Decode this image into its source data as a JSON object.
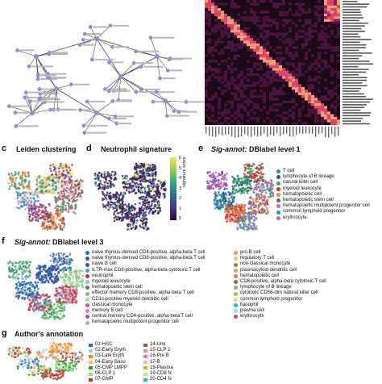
{
  "panels": {
    "c": {
      "letter": "c",
      "title": "Leiden clustering"
    },
    "d": {
      "letter": "d",
      "title": "Neutrophil signature",
      "colorbar_label": "signature score",
      "colorbar_ticks": [
        "6",
        "5",
        "4",
        "3",
        "2",
        "1",
        "0"
      ]
    },
    "e": {
      "letter": "e",
      "title_italic": "Sig-annot:",
      "title_rest": " DBlabel level 1",
      "legend": [
        {
          "label": "T cell",
          "color": "#2f8fb3"
        },
        {
          "label": "lymphocyte of B lineage",
          "color": "#1f5f78"
        },
        {
          "label": "natural killer cell",
          "color": "#43a35b"
        },
        {
          "label": "myeloid leukocyte",
          "color": "#d62c3c"
        },
        {
          "label": "hematopoietic cell",
          "color": "#e88a2e"
        },
        {
          "label": "hematopoietic stem cell",
          "color": "#7a4fa3"
        },
        {
          "label": "hematopoietic multipotent progenitor cell",
          "color": "#b86bc2"
        },
        {
          "label": "common lymphoid progenitor",
          "color": "#2b9d8f"
        },
        {
          "label": "erythrocyte",
          "color": "#e05a8a"
        }
      ]
    },
    "f": {
      "letter": "f",
      "title_italic": "Sig-annot:",
      "title_rest": " DBlabel level 3",
      "legend_left": [
        {
          "label": "naive thymus-derived CD4-positive, alpha-beta T cell",
          "color": "#1f77b4"
        },
        {
          "label": "naive thymus-derived CD8-positive, alpha-beta T cell",
          "color": "#2a5fa8"
        },
        {
          "label": "naive B cell",
          "color": "#3b4fa0"
        },
        {
          "label": "IL7R-max CD8-positive, alpha-beta cytotoxic T cell",
          "color": "#5a8fd0"
        },
        {
          "label": "neutrophil",
          "color": "#d8262c"
        },
        {
          "label": "myeloid leukocyte",
          "color": "#9bb7e0"
        },
        {
          "label": "hematopoietic stem cell",
          "color": "#2c9c4a"
        },
        {
          "label": "effector memory CD8-positive, alpha-beta T cell",
          "color": "#7cc47a"
        },
        {
          "label": "CD1c-positive myeloid dendritic cell",
          "color": "#a8d5a2"
        },
        {
          "label": "classical monocyte",
          "color": "#e0559a"
        },
        {
          "label": "memory B cell",
          "color": "#f07ab4"
        },
        {
          "label": "central memory CD4-positive, alpha-beta T cell",
          "color": "#8e5bb0"
        },
        {
          "label": "hematopoietic multipotent progenitor cell",
          "color": "#c19bd6"
        }
      ],
      "legend_right": [
        {
          "label": "pro-B cell",
          "color": "#e6a23c"
        },
        {
          "label": "regulatory T cell",
          "color": "#f2c66d"
        },
        {
          "label": "non-classical monocyte",
          "color": "#9b7a3c"
        },
        {
          "label": "plasmacytoid dendritic cell",
          "color": "#c8a878"
        },
        {
          "label": "hematopoietic cell",
          "color": "#e07a3a"
        },
        {
          "label": "CD8-positive, alpha-beta cytotoxic T cell",
          "color": "#6b6b6b"
        },
        {
          "label": "lymphocyte of B lineage",
          "color": "#a0a0a0"
        },
        {
          "label": "cytotoxic CD56-dim natural killer cell",
          "color": "#bcbd22"
        },
        {
          "label": "common lymphoid progenitor",
          "color": "#dbdb8d"
        },
        {
          "label": "basophil",
          "color": "#17becf"
        },
        {
          "label": "plasma cell",
          "color": "#9edae5"
        },
        {
          "label": "erythrocyte",
          "color": "#c44e52"
        }
      ]
    },
    "g": {
      "letter": "g",
      "title": "Author's annotation",
      "legend_left": [
        {
          "label": "01-HSC",
          "color": "#1f77b4"
        },
        {
          "label": "02-Early Eryth",
          "color": "#aec7e8"
        },
        {
          "label": "03-Late Eryth",
          "color": "#ff7f0e"
        },
        {
          "label": "04-Early Baso",
          "color": "#ffbb78"
        },
        {
          "label": "05-CMP LMPP",
          "color": "#2ca02c"
        },
        {
          "label": "06-CLP 1",
          "color": "#98df8a"
        },
        {
          "label": "07-GMP",
          "color": "#d62728"
        }
      ],
      "legend_right": [
        {
          "label": "14-Unk",
          "color": "#8c564b"
        },
        {
          "label": "15-CLP 2",
          "color": "#c49c94"
        },
        {
          "label": "16-Pre B",
          "color": "#e377c2"
        },
        {
          "label": "17-B",
          "color": "#f7b6d2"
        },
        {
          "label": "18-Plasma",
          "color": "#bcbd22"
        },
        {
          "label": "19-CD8 N",
          "color": "#dbdb8d"
        },
        {
          "label": "20-CD4 N",
          "color": "#17becf"
        }
      ]
    }
  },
  "colors": {
    "heatmap_bg": "#1a0b16",
    "node": "#8f8fd6",
    "edge": "#4a4a4a"
  }
}
